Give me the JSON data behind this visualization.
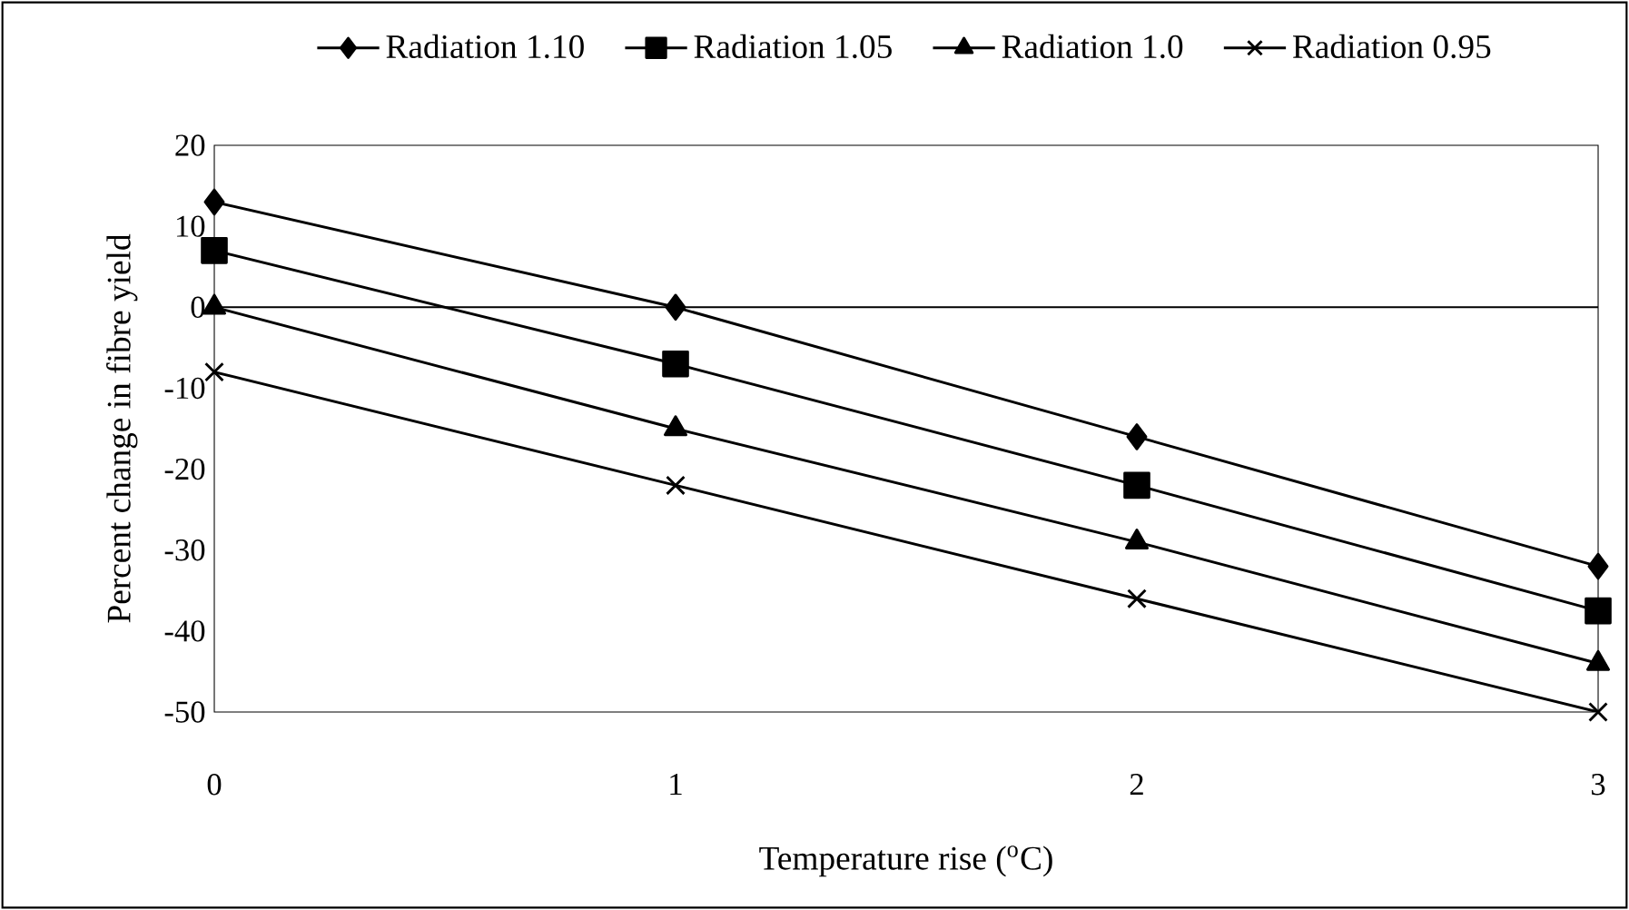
{
  "chart_data": {
    "type": "line",
    "xlabel": "Temperature rise ($^{o}$C)",
    "ylabel": "Percent change in fibre yield",
    "x": [
      0,
      1,
      2,
      3
    ],
    "xlim": [
      0,
      3
    ],
    "xticks": [
      0,
      1,
      2,
      3
    ],
    "ylim": [
      -50,
      20
    ],
    "yticks": [
      -50,
      -40,
      -30,
      -20,
      -10,
      0,
      10,
      20
    ],
    "series": [
      {
        "name": "Radiation 1.10",
        "color": "#000000",
        "marker": "diamond",
        "values": [
          13,
          0,
          -16,
          -32
        ]
      },
      {
        "name": "Radiation 1.05",
        "color": "#000000",
        "marker": "square",
        "values": [
          7,
          -7,
          -22,
          -37.5
        ]
      },
      {
        "name": "Radiation 1.0",
        "color": "#000000",
        "marker": "triangle",
        "values": [
          0,
          -15,
          -29,
          -44
        ]
      },
      {
        "name": "Radiation 0.95",
        "color": "#000000",
        "marker": "cross",
        "values": [
          -8,
          -22,
          -36,
          -50
        ]
      }
    ],
    "ref_lines": [
      {
        "axis": "y",
        "value": 0,
        "color": "#000000"
      }
    ],
    "legend": "top",
    "grid": false,
    "line_style": "solid"
  }
}
